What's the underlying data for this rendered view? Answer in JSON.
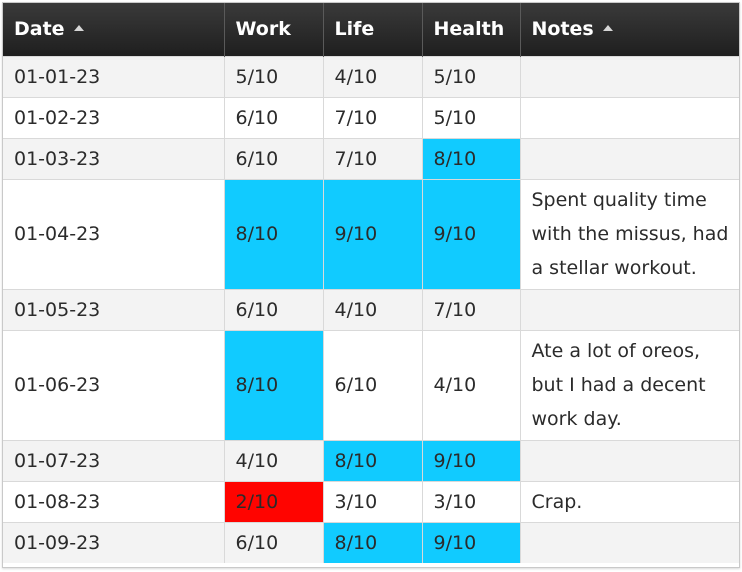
{
  "colors": {
    "highlight_blue": "#11cbff",
    "highlight_red": "#ff0400",
    "header_bg": "#2a2a2a"
  },
  "columns": [
    {
      "label": "Date",
      "sort_icon": "sort-ascending-icon"
    },
    {
      "label": "Work"
    },
    {
      "label": "Life"
    },
    {
      "label": "Health"
    },
    {
      "label": "Notes",
      "sort_icon": "sort-ascending-icon"
    }
  ],
  "rows": [
    {
      "date": "01-01-23",
      "work": "5/10",
      "life": "4/10",
      "health": "5/10",
      "notes": "",
      "highlights": {}
    },
    {
      "date": "01-02-23",
      "work": "6/10",
      "life": "7/10",
      "health": "5/10",
      "notes": "",
      "highlights": {}
    },
    {
      "date": "01-03-23",
      "work": "6/10",
      "life": "7/10",
      "health": "8/10",
      "notes": "",
      "highlights": {
        "health": "blue"
      }
    },
    {
      "date": "01-04-23",
      "work": "8/10",
      "life": "9/10",
      "health": "9/10",
      "notes": "Spent quality time with the missus, had a stellar workout.",
      "highlights": {
        "work": "blue",
        "life": "blue",
        "health": "blue"
      }
    },
    {
      "date": "01-05-23",
      "work": "6/10",
      "life": "4/10",
      "health": "7/10",
      "notes": "",
      "highlights": {}
    },
    {
      "date": "01-06-23",
      "work": "8/10",
      "life": "6/10",
      "health": "4/10",
      "notes": "Ate a lot of oreos, but I had a decent work day.",
      "highlights": {
        "work": "blue"
      }
    },
    {
      "date": "01-07-23",
      "work": "4/10",
      "life": "8/10",
      "health": "9/10",
      "notes": "",
      "highlights": {
        "life": "blue",
        "health": "blue"
      }
    },
    {
      "date": "01-08-23",
      "work": "2/10",
      "life": "3/10",
      "health": "3/10",
      "notes": "Crap.",
      "highlights": {
        "work": "red"
      }
    },
    {
      "date": "01-09-23",
      "work": "6/10",
      "life": "8/10",
      "health": "9/10",
      "notes": "",
      "highlights": {
        "life": "blue",
        "health": "blue"
      }
    }
  ]
}
